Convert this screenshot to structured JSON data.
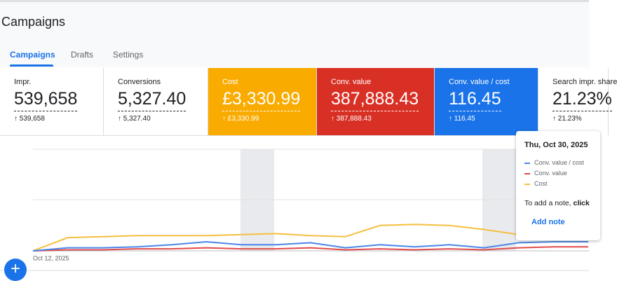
{
  "header": {
    "title": "Campaigns"
  },
  "tabs": [
    "Campaigns",
    "Drafts",
    "Settings"
  ],
  "cards": [
    {
      "label": "Impr.",
      "value": "539,658",
      "delta": "539,658"
    },
    {
      "label": "Conversions",
      "value": "5,327.40",
      "delta": "5,327.40"
    },
    {
      "label": "Cost",
      "value": "£3,330.99",
      "delta": "£3,330.99"
    },
    {
      "label": "Conv. value",
      "value": "387,888.43",
      "delta": "387,888.43"
    },
    {
      "label": "Conv. value / cost",
      "value": "116.45",
      "delta": "116.45"
    },
    {
      "label": "Search impr. share",
      "value": "21.23%",
      "delta": "21.23%"
    }
  ],
  "chart": {
    "x_label": "Oct 12, 2025",
    "series": [
      {
        "name": "Conv. value / cost",
        "color": "#4a86e8",
        "values": [
          0,
          3,
          3,
          4,
          6,
          9,
          6,
          6,
          8,
          3,
          6,
          4,
          6,
          3,
          8,
          9,
          9
        ]
      },
      {
        "name": "Conv. value",
        "color": "#e04a4a",
        "values": [
          0,
          1,
          1,
          2,
          2,
          3,
          2,
          2,
          3,
          1,
          2,
          1,
          2,
          1,
          3,
          4,
          4
        ]
      },
      {
        "name": "Cost",
        "color": "#f6bf40",
        "values": [
          0,
          13,
          14,
          15,
          15,
          15,
          16,
          17,
          15,
          14,
          25,
          26,
          25,
          21,
          16,
          12,
          13
        ]
      }
    ]
  },
  "tooltip": {
    "date": "Thu, Oct 30, 2025",
    "note": "To add a note,",
    "note_bold": "click",
    "action": "Add note"
  }
}
